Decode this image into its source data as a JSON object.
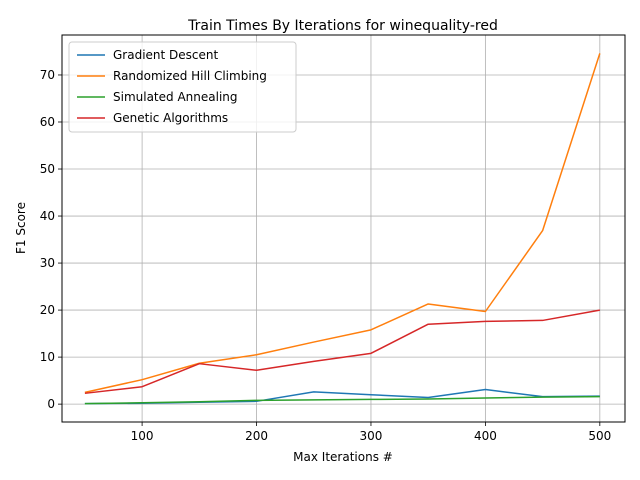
{
  "chart_data": {
    "type": "line",
    "title": "Train Times By Iterations for winequality-red",
    "xlabel": "Max Iterations #",
    "ylabel": "F1 Score",
    "x": [
      50,
      100,
      150,
      200,
      250,
      300,
      350,
      400,
      450,
      500
    ],
    "xlim": [
      30,
      522
    ],
    "ylim": [
      -3.8,
      78.5
    ],
    "x_ticks": [
      "100",
      "200",
      "300",
      "400",
      "500"
    ],
    "y_ticks": [
      "0",
      "10",
      "20",
      "30",
      "40",
      "50",
      "60",
      "70"
    ],
    "grid": true,
    "legend_position": "top-left",
    "series": [
      {
        "name": "Gradient Descent",
        "color": "#1f77b4",
        "values": [
          0.1,
          0.2,
          0.4,
          0.6,
          2.6,
          2.0,
          1.4,
          3.1,
          1.6,
          1.7
        ]
      },
      {
        "name": "Randomized Hill Climbing",
        "color": "#ff7f0e",
        "values": [
          2.5,
          5.2,
          8.7,
          10.5,
          13.2,
          15.8,
          21.3,
          19.7,
          36.9,
          74.6
        ]
      },
      {
        "name": "Simulated Annealing",
        "color": "#2ca02c",
        "values": [
          0.1,
          0.3,
          0.5,
          0.8,
          0.9,
          1.0,
          1.1,
          1.3,
          1.5,
          1.6
        ]
      },
      {
        "name": "Genetic Algorithms",
        "color": "#d62728",
        "values": [
          2.3,
          3.7,
          8.6,
          7.2,
          9.1,
          10.8,
          17.0,
          17.6,
          17.8,
          20.0
        ]
      }
    ]
  }
}
